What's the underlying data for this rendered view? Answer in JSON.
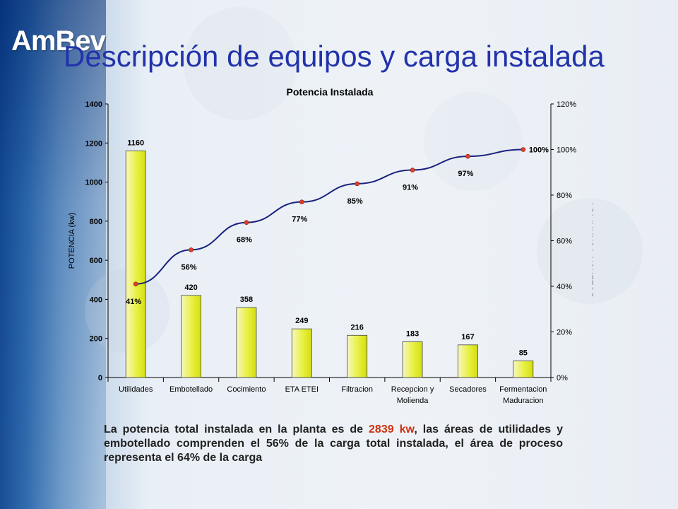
{
  "slide": {
    "logo": "AmBev",
    "title": "Descripción de equipos y carga instalada"
  },
  "colors": {
    "title": "#2233aa",
    "bar_fill_light": "#f7f7c0",
    "bar_fill_yellow": "#e8f040",
    "bar_stroke": "#444444",
    "line": "#1a237e",
    "marker": "#e0402a",
    "highlight": "#cc3311"
  },
  "chart_data": {
    "type": "bar",
    "title": "Potencia Instalada",
    "ylabel": "POTENCIA (kw)",
    "y2label": "POTENCIA ACUMULADA",
    "ylim": [
      0,
      1400
    ],
    "yticks": [
      0,
      200,
      400,
      600,
      800,
      1000,
      1200,
      1400
    ],
    "y2lim": [
      0,
      120
    ],
    "y2ticks": [
      "0%",
      "20%",
      "40%",
      "60%",
      "80%",
      "100%",
      "120%"
    ],
    "y2tick_values": [
      0,
      20,
      40,
      60,
      80,
      100,
      120
    ],
    "categories": [
      [
        "Utilidades"
      ],
      [
        "Embotellado"
      ],
      [
        "Cocimiento"
      ],
      [
        "ETA ETEI"
      ],
      [
        "Filtracion"
      ],
      [
        "Recepcion y",
        "Molienda"
      ],
      [
        "Secadores"
      ],
      [
        "Fermentacion",
        "Maduracion"
      ]
    ],
    "series": [
      {
        "type": "bar",
        "values": [
          1160,
          420,
          358,
          249,
          216,
          183,
          167,
          85
        ],
        "labels": [
          "1160",
          "420",
          "358",
          "249",
          "216",
          "183",
          "167",
          "85"
        ]
      },
      {
        "type": "line",
        "axis": "secondary",
        "values": [
          41,
          56,
          68,
          77,
          85,
          91,
          97,
          100
        ],
        "labels": [
          "41%",
          "56%",
          "68%",
          "77%",
          "85%",
          "91%",
          "97%",
          "100%"
        ]
      }
    ],
    "legend": "none",
    "grid": false
  },
  "caption": {
    "part1": "La potencia total instalada en la planta es de ",
    "highlight": "2839 kw",
    "part2": ", las áreas de utilidades y embotellado comprenden el 56% de la carga total instalada, el área de proceso representa el 64% de la carga"
  }
}
